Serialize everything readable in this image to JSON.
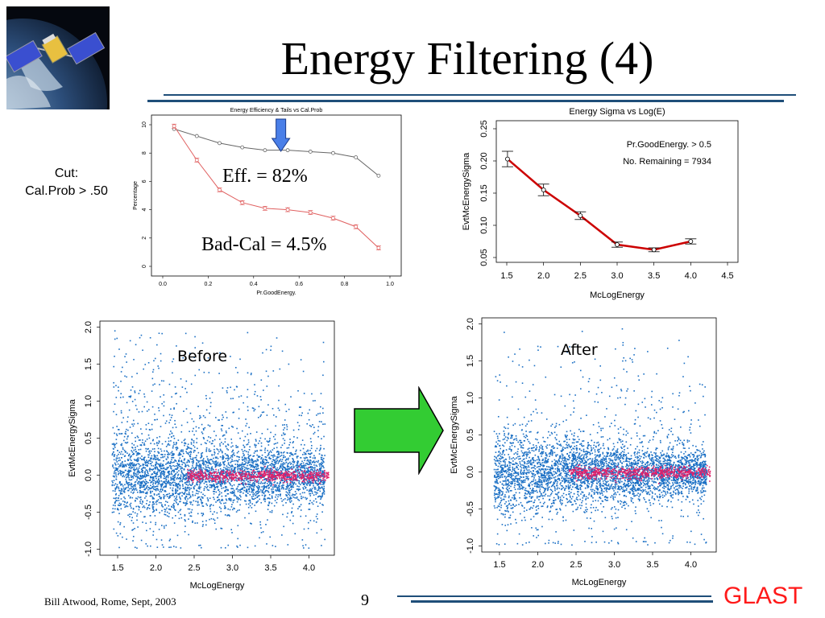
{
  "slide": {
    "title": "Energy Filtering (4)",
    "cut_label_line1": "Cut:",
    "cut_label_line2": "Cal.Prob > .50",
    "footer_left": "Bill Atwood,  Rome, Sept, 2003",
    "page_number": "9",
    "logo": "GLAST",
    "logo_color": "#ff1a1a",
    "accent": "#1f4e79"
  },
  "chart_data": [
    {
      "id": "efficiency",
      "type": "line",
      "title": "Energy Efficiency & Tails vs Cal.Prob",
      "xlabel": "Pr.GoodEnergy.",
      "ylabel": "Percentage",
      "xlim": [
        0,
        1
      ],
      "ylim": [
        0,
        10
      ],
      "xticks": [
        "0.0",
        "0.2",
        "0.4",
        "0.6",
        "0.8",
        "1.0"
      ],
      "yticks": [
        "0",
        "2",
        "4",
        "6",
        "8",
        "10"
      ],
      "x": [
        0.05,
        0.15,
        0.25,
        0.35,
        0.45,
        0.55,
        0.65,
        0.75,
        0.85,
        0.95
      ],
      "series": [
        {
          "values": [
            9.7,
            9.2,
            8.7,
            8.4,
            8.2,
            8.2,
            8.1,
            8.0,
            7.7,
            6.4
          ],
          "color": "#666666"
        },
        {
          "values": [
            9.9,
            7.5,
            5.4,
            4.5,
            4.1,
            4.0,
            3.8,
            3.4,
            2.8,
            1.3
          ],
          "color": "#e06060"
        }
      ],
      "annotations": [
        "Eff. = 82%",
        "Bad-Cal = 4.5%"
      ],
      "arrow_color": "#4a7fe8"
    },
    {
      "id": "sigma",
      "type": "line",
      "title": "Energy Sigma vs Log(E)",
      "xlabel": "McLogEnergy",
      "ylabel": "EvtMcEnergySigma",
      "xlim": [
        1.5,
        4.5
      ],
      "ylim": [
        0.05,
        0.25
      ],
      "xticks": [
        "1.5",
        "2.0",
        "2.5",
        "3.0",
        "3.5",
        "4.0",
        "4.5"
      ],
      "yticks": [
        "0.05",
        "0.10",
        "0.15",
        "0.20",
        "0.25"
      ],
      "x": [
        1.51,
        2.0,
        2.5,
        3.0,
        3.5,
        4.0
      ],
      "values": [
        0.203,
        0.155,
        0.115,
        0.07,
        0.062,
        0.075
      ],
      "errors": [
        0.012,
        0.009,
        0.006,
        0.004,
        0.003,
        0.004
      ],
      "legend_line1": "Pr.GoodEnergy.  >  0.5",
      "legend_line2": "No. Remaining =  7934",
      "line_color": "#cc0000"
    },
    {
      "id": "before",
      "type": "scatter",
      "xlabel": "McLogEnergy",
      "ylabel": "EvtMcEnergySigma",
      "xlim": [
        1.3,
        4.3
      ],
      "ylim": [
        -1.05,
        2.05
      ],
      "xticks": [
        "1.5",
        "2.0",
        "2.5",
        "3.0",
        "3.5",
        "4.0"
      ],
      "yticks": [
        "-1.0",
        "-0.5",
        "0.0",
        "0.5",
        "1.0",
        "1.5",
        "2.0"
      ],
      "label": "Before",
      "point_color": "#1a6fc4",
      "core_color": "#e0206a"
    },
    {
      "id": "after",
      "type": "scatter",
      "xlabel": "McLogEnergy",
      "ylabel": "EvtMcEnergySigma",
      "xlim": [
        1.3,
        4.3
      ],
      "ylim": [
        -1.05,
        2.05
      ],
      "xticks": [
        "1.5",
        "2.0",
        "2.5",
        "3.0",
        "3.5",
        "4.0"
      ],
      "yticks": [
        "-1.0",
        "-0.5",
        "0.0",
        "0.5",
        "1.0",
        "1.5",
        "2.0"
      ],
      "label": "After",
      "point_color": "#1a6fc4",
      "core_color": "#e0206a"
    }
  ],
  "transition_arrow_color": "#33cc33"
}
